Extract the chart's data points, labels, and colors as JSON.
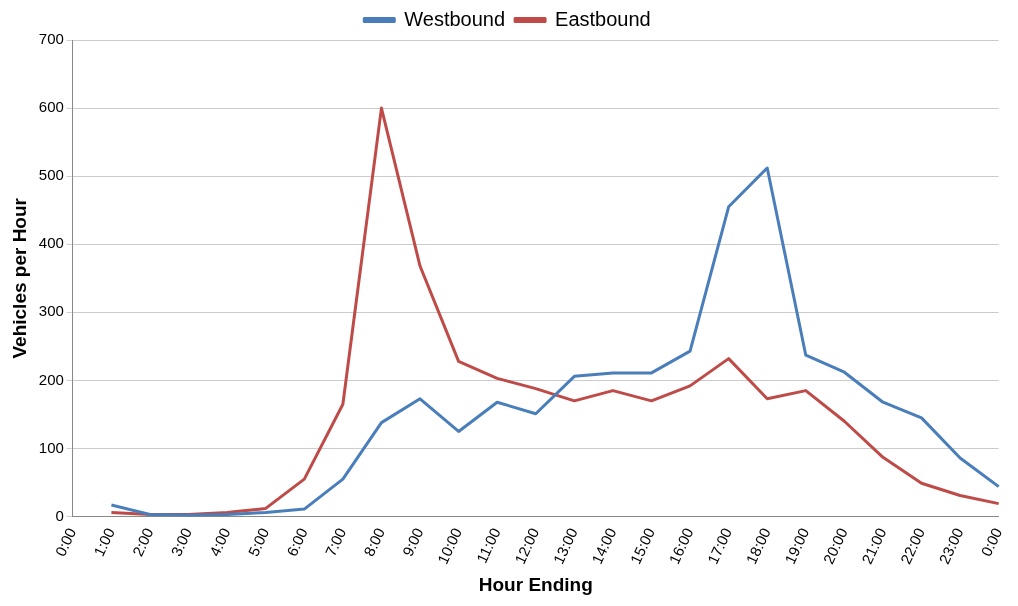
{
  "chart_data": {
    "type": "line",
    "xlabel": "Hour Ending",
    "ylabel": "Vehicles per Hour",
    "categories": [
      "0:00",
      "1:00",
      "2:00",
      "3:00",
      "4:00",
      "5:00",
      "6:00",
      "7:00",
      "8:00",
      "9:00",
      "10:00",
      "11:00",
      "12:00",
      "13:00",
      "14:00",
      "15:00",
      "16:00",
      "17:00",
      "18:00",
      "19:00",
      "20:00",
      "21:00",
      "22:00",
      "23:00",
      "0:00"
    ],
    "series": [
      {
        "name": "Westbound",
        "color": "#4a7ebb",
        "values": [
          null,
          17,
          3,
          2,
          3,
          6,
          11,
          55,
          138,
          173,
          125,
          168,
          151,
          206,
          211,
          211,
          243,
          455,
          512,
          237,
          212,
          168,
          145,
          86,
          44
        ]
      },
      {
        "name": "Eastbound",
        "color": "#be4b48",
        "values": [
          null,
          6,
          3,
          3,
          6,
          12,
          55,
          165,
          600,
          368,
          228,
          203,
          188,
          170,
          185,
          170,
          192,
          232,
          173,
          185,
          140,
          87,
          49,
          31,
          19
        ]
      }
    ],
    "ylim": [
      0,
      700
    ],
    "yticks": [
      0,
      100,
      200,
      300,
      400,
      500,
      600,
      700
    ],
    "grid": "y",
    "legend": "top",
    "marker": "none",
    "line_style": "solid"
  }
}
